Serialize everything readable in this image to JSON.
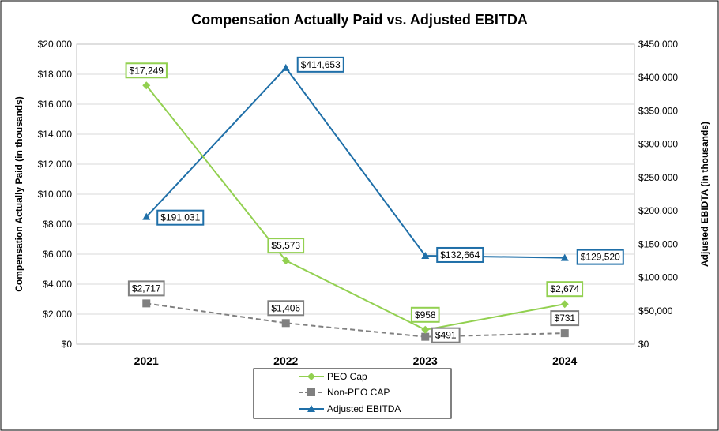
{
  "chart_data": {
    "type": "line",
    "title": "Compensation Actually Paid vs. Adjusted EBITDA",
    "categories": [
      "2021",
      "2022",
      "2023",
      "2024"
    ],
    "ylabel_left": "Compensation Actually Paid (in thousands)",
    "ylabel_right": "Adjusted EBIDTA (in thousands)",
    "ylim_left": [
      0,
      20000
    ],
    "ylim_right": [
      0,
      450000
    ],
    "yticks_left": [
      "$0",
      "$2,000",
      "$4,000",
      "$6,000",
      "$8,000",
      "$10,000",
      "$12,000",
      "$14,000",
      "$16,000",
      "$18,000",
      "$20,000"
    ],
    "yticks_right": [
      "$0",
      "$50,000",
      "$100,000",
      "$150,000",
      "$200,000",
      "$250,000",
      "$300,000",
      "$350,000",
      "$400,000",
      "$450,000"
    ],
    "grid": true,
    "legend_position": "bottom",
    "series": [
      {
        "name": "PEO Cap",
        "axis": "left",
        "values": [
          17249,
          5573,
          958,
          2674
        ],
        "labels": [
          "$17,249",
          "$5,573",
          "$958",
          "$2,674"
        ],
        "color": "#92d050",
        "marker": "diamond",
        "dash": "solid"
      },
      {
        "name": "Non-PEO CAP",
        "axis": "left",
        "values": [
          2717,
          1406,
          491,
          731
        ],
        "labels": [
          "$2,717",
          "$1,406",
          "$491",
          "$731"
        ],
        "color": "#808080",
        "marker": "square",
        "dash": "dashed"
      },
      {
        "name": "Adjusted EBITDA",
        "axis": "right",
        "values": [
          191031,
          414653,
          132664,
          129520
        ],
        "labels": [
          "$191,031",
          "$414,653",
          "$132,664",
          "$129,520"
        ],
        "color": "#1f6fa8",
        "marker": "triangle",
        "dash": "solid"
      }
    ]
  }
}
